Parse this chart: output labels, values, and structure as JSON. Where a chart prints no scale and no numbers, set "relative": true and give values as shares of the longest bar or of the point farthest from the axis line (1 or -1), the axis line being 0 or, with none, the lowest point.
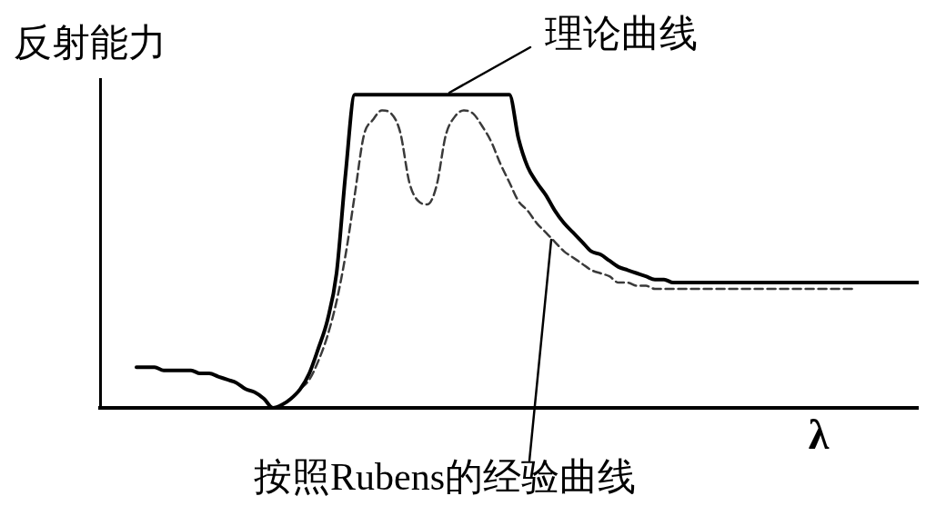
{
  "chart_data": {
    "type": "line",
    "relative": true,
    "xlabel": "λ",
    "ylabel": "反射能力",
    "marker": "none",
    "categories": [
      null,
      null,
      null,
      null,
      null,
      null,
      null,
      null,
      null,
      null,
      null,
      null,
      null,
      null,
      null,
      null,
      null,
      null,
      null,
      null,
      null,
      null,
      null,
      null,
      null,
      null,
      null,
      null,
      null,
      null,
      null,
      null,
      null,
      null,
      null,
      null,
      null,
      null,
      null,
      null,
      null,
      null,
      null,
      null,
      null,
      null,
      null,
      null,
      null,
      null,
      null,
      null,
      null,
      null,
      null,
      null,
      null,
      null,
      null,
      null,
      null,
      null,
      null,
      null,
      null,
      null,
      null,
      null,
      null,
      null,
      null,
      null,
      null,
      null,
      null,
      null,
      null,
      null,
      null,
      null,
      null,
      null,
      null,
      null,
      null,
      null,
      null,
      null,
      null,
      null,
      null
    ],
    "series": [
      {
        "name": "理论曲线",
        "color": "#000000",
        "line_style": "solid",
        "values": [
          null,
          null,
          null,
          null,
          0.13,
          0.13,
          0.13,
          0.12,
          0.12,
          0.12,
          0.12,
          0.11,
          0.11,
          0.1,
          0.09,
          0.08,
          0.06,
          0.05,
          0.03,
          0,
          0.01,
          0.03,
          0.06,
          0.11,
          0.19,
          0.28,
          0.43,
          0.75,
          1,
          1,
          1,
          1,
          1,
          1,
          1,
          1,
          1,
          1,
          1,
          1,
          1,
          1,
          1,
          1,
          1,
          1,
          0.86,
          0.77,
          0.72,
          0.68,
          0.63,
          0.59,
          0.56,
          0.53,
          0.5,
          0.49,
          0.47,
          0.45,
          0.44,
          0.43,
          0.42,
          0.41,
          0.41,
          0.4,
          0.4,
          0.4,
          0.4,
          0.4,
          0.4,
          0.4,
          0.4,
          0.4,
          0.4,
          0.4,
          0.4,
          0.4,
          0.4,
          0.4,
          0.4,
          0.4,
          0.4,
          0.4,
          0.4,
          0.4,
          0.4,
          0.4,
          0.4,
          0.4,
          0.4,
          0.4,
          0.4
        ]
      },
      {
        "name": "按照Rubens的经验曲线",
        "color": "#3a3a3a",
        "line_style": "dashed",
        "values": [
          null,
          null,
          null,
          null,
          null,
          null,
          null,
          null,
          null,
          null,
          null,
          null,
          null,
          null,
          null,
          null,
          null,
          null,
          null,
          null,
          0.01,
          0.03,
          0.06,
          0.09,
          0.15,
          0.23,
          0.34,
          0.49,
          0.68,
          0.87,
          0.92,
          0.95,
          0.94,
          0.88,
          0.72,
          0.66,
          0.65,
          0.71,
          0.87,
          0.93,
          0.95,
          0.94,
          0.9,
          0.85,
          0.78,
          0.72,
          0.66,
          0.63,
          0.59,
          0.56,
          0.53,
          0.5,
          0.48,
          0.46,
          0.44,
          0.43,
          0.42,
          0.4,
          0.4,
          0.39,
          0.39,
          0.38,
          0.38,
          0.38,
          0.38,
          0.38,
          0.38,
          0.38,
          0.38,
          0.38,
          0.38,
          0.38,
          0.38,
          0.38,
          0.38,
          0.38,
          0.38,
          0.38,
          0.38,
          0.38,
          0.38,
          0.38,
          0.38,
          0.38,
          null,
          null,
          null,
          null,
          null,
          null,
          null
        ]
      }
    ]
  }
}
